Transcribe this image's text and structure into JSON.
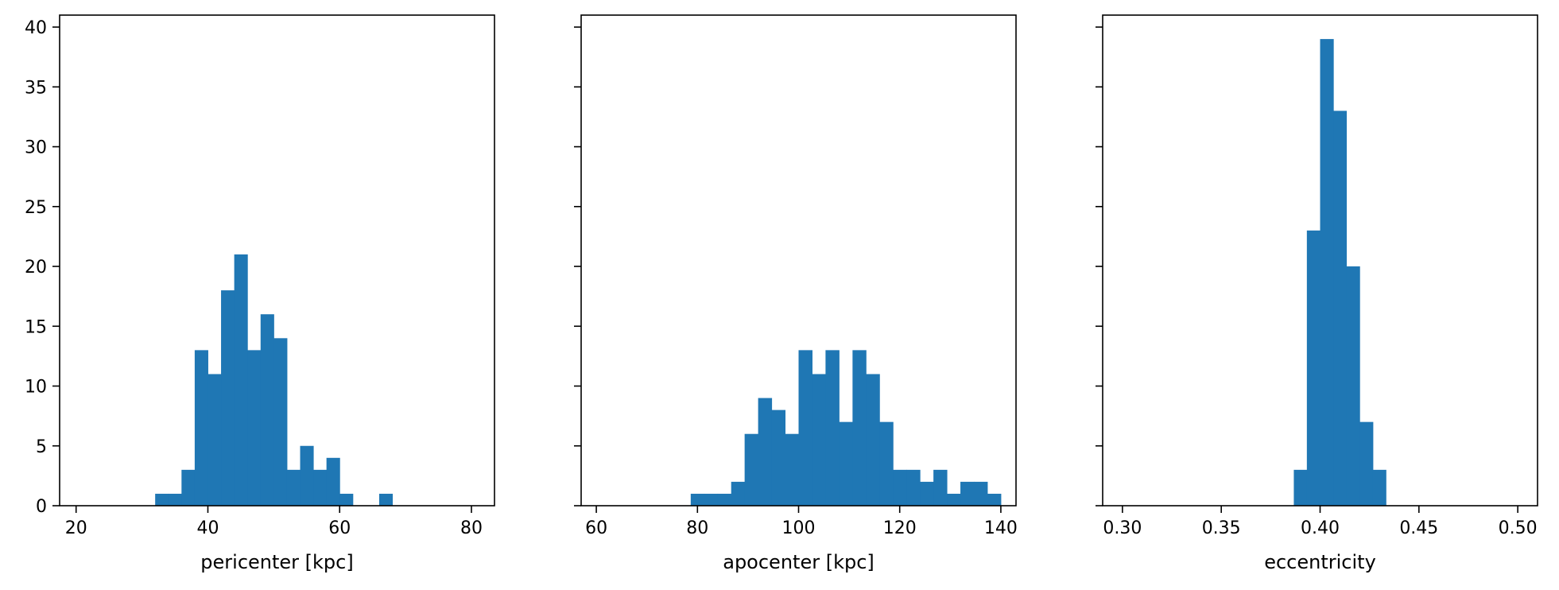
{
  "chart_data": [
    {
      "type": "bar",
      "xlabel": "pericenter [kpc]",
      "ylabel": "",
      "xlim": [
        17.5,
        83.5
      ],
      "ylim": [
        0,
        41
      ],
      "xticks": [
        20,
        40,
        60,
        80
      ],
      "yticks": [
        0,
        5,
        10,
        15,
        20,
        25,
        30,
        35,
        40
      ],
      "bin_edges": [
        20,
        22,
        24,
        26,
        28,
        30,
        32,
        34,
        36,
        38,
        40,
        42,
        44,
        46,
        48,
        50,
        52,
        54,
        56,
        58,
        60,
        62,
        64,
        66,
        68,
        70,
        72,
        74,
        76,
        78,
        80
      ],
      "values": [
        0,
        0,
        0,
        0,
        0,
        0,
        1,
        1,
        3,
        13,
        11,
        18,
        21,
        13,
        16,
        14,
        3,
        5,
        3,
        4,
        1,
        0,
        0,
        1,
        0,
        0,
        0,
        0,
        0,
        0
      ],
      "color": "#1f77b4",
      "grid": false
    },
    {
      "type": "bar",
      "xlabel": "apocenter [kpc]",
      "ylabel": "",
      "xlim": [
        57,
        143
      ],
      "ylim": [
        0,
        41
      ],
      "xticks": [
        60,
        80,
        100,
        120,
        140
      ],
      "yticks": [
        0,
        5,
        10,
        15,
        20,
        25,
        30,
        35,
        40
      ],
      "bin_edges": [
        60,
        62.67,
        65.33,
        68,
        70.67,
        73.33,
        76,
        78.67,
        81.33,
        84,
        86.67,
        89.33,
        92,
        94.67,
        97.33,
        100,
        102.67,
        105.33,
        108,
        110.67,
        113.33,
        116,
        118.67,
        121.33,
        124,
        126.67,
        129.33,
        132,
        134.67,
        137.33,
        140
      ],
      "values": [
        0,
        0,
        0,
        0,
        0,
        0,
        0,
        1,
        1,
        1,
        2,
        6,
        9,
        8,
        6,
        13,
        11,
        13,
        7,
        13,
        11,
        7,
        3,
        3,
        2,
        3,
        1,
        2,
        2,
        1
      ],
      "color": "#1f77b4",
      "grid": false
    },
    {
      "type": "bar",
      "xlabel": "eccentricity",
      "ylabel": "",
      "xlim": [
        0.29,
        0.51
      ],
      "ylim": [
        0,
        41
      ],
      "xticks": [
        0.3,
        0.35,
        0.4,
        0.45,
        0.5
      ],
      "xtick_labels": [
        "0.30",
        "0.35",
        "0.40",
        "0.45",
        "0.50"
      ],
      "yticks": [
        0,
        5,
        10,
        15,
        20,
        25,
        30,
        35,
        40
      ],
      "bin_edges": [
        0.3,
        0.3067,
        0.3133,
        0.32,
        0.3267,
        0.3333,
        0.34,
        0.3467,
        0.3533,
        0.36,
        0.3667,
        0.3733,
        0.38,
        0.3867,
        0.3933,
        0.4,
        0.4067,
        0.4133,
        0.42,
        0.4267,
        0.4333,
        0.44,
        0.4467,
        0.4533,
        0.46,
        0.4667,
        0.4733,
        0.48,
        0.4867,
        0.4933,
        0.5
      ],
      "values": [
        0,
        0,
        0,
        0,
        0,
        0,
        0,
        0,
        0,
        0,
        0,
        0,
        0,
        3,
        23,
        39,
        33,
        20,
        7,
        3,
        0,
        0,
        0,
        0,
        0,
        0,
        0,
        0,
        0,
        0
      ],
      "color": "#1f77b4",
      "grid": false
    }
  ]
}
